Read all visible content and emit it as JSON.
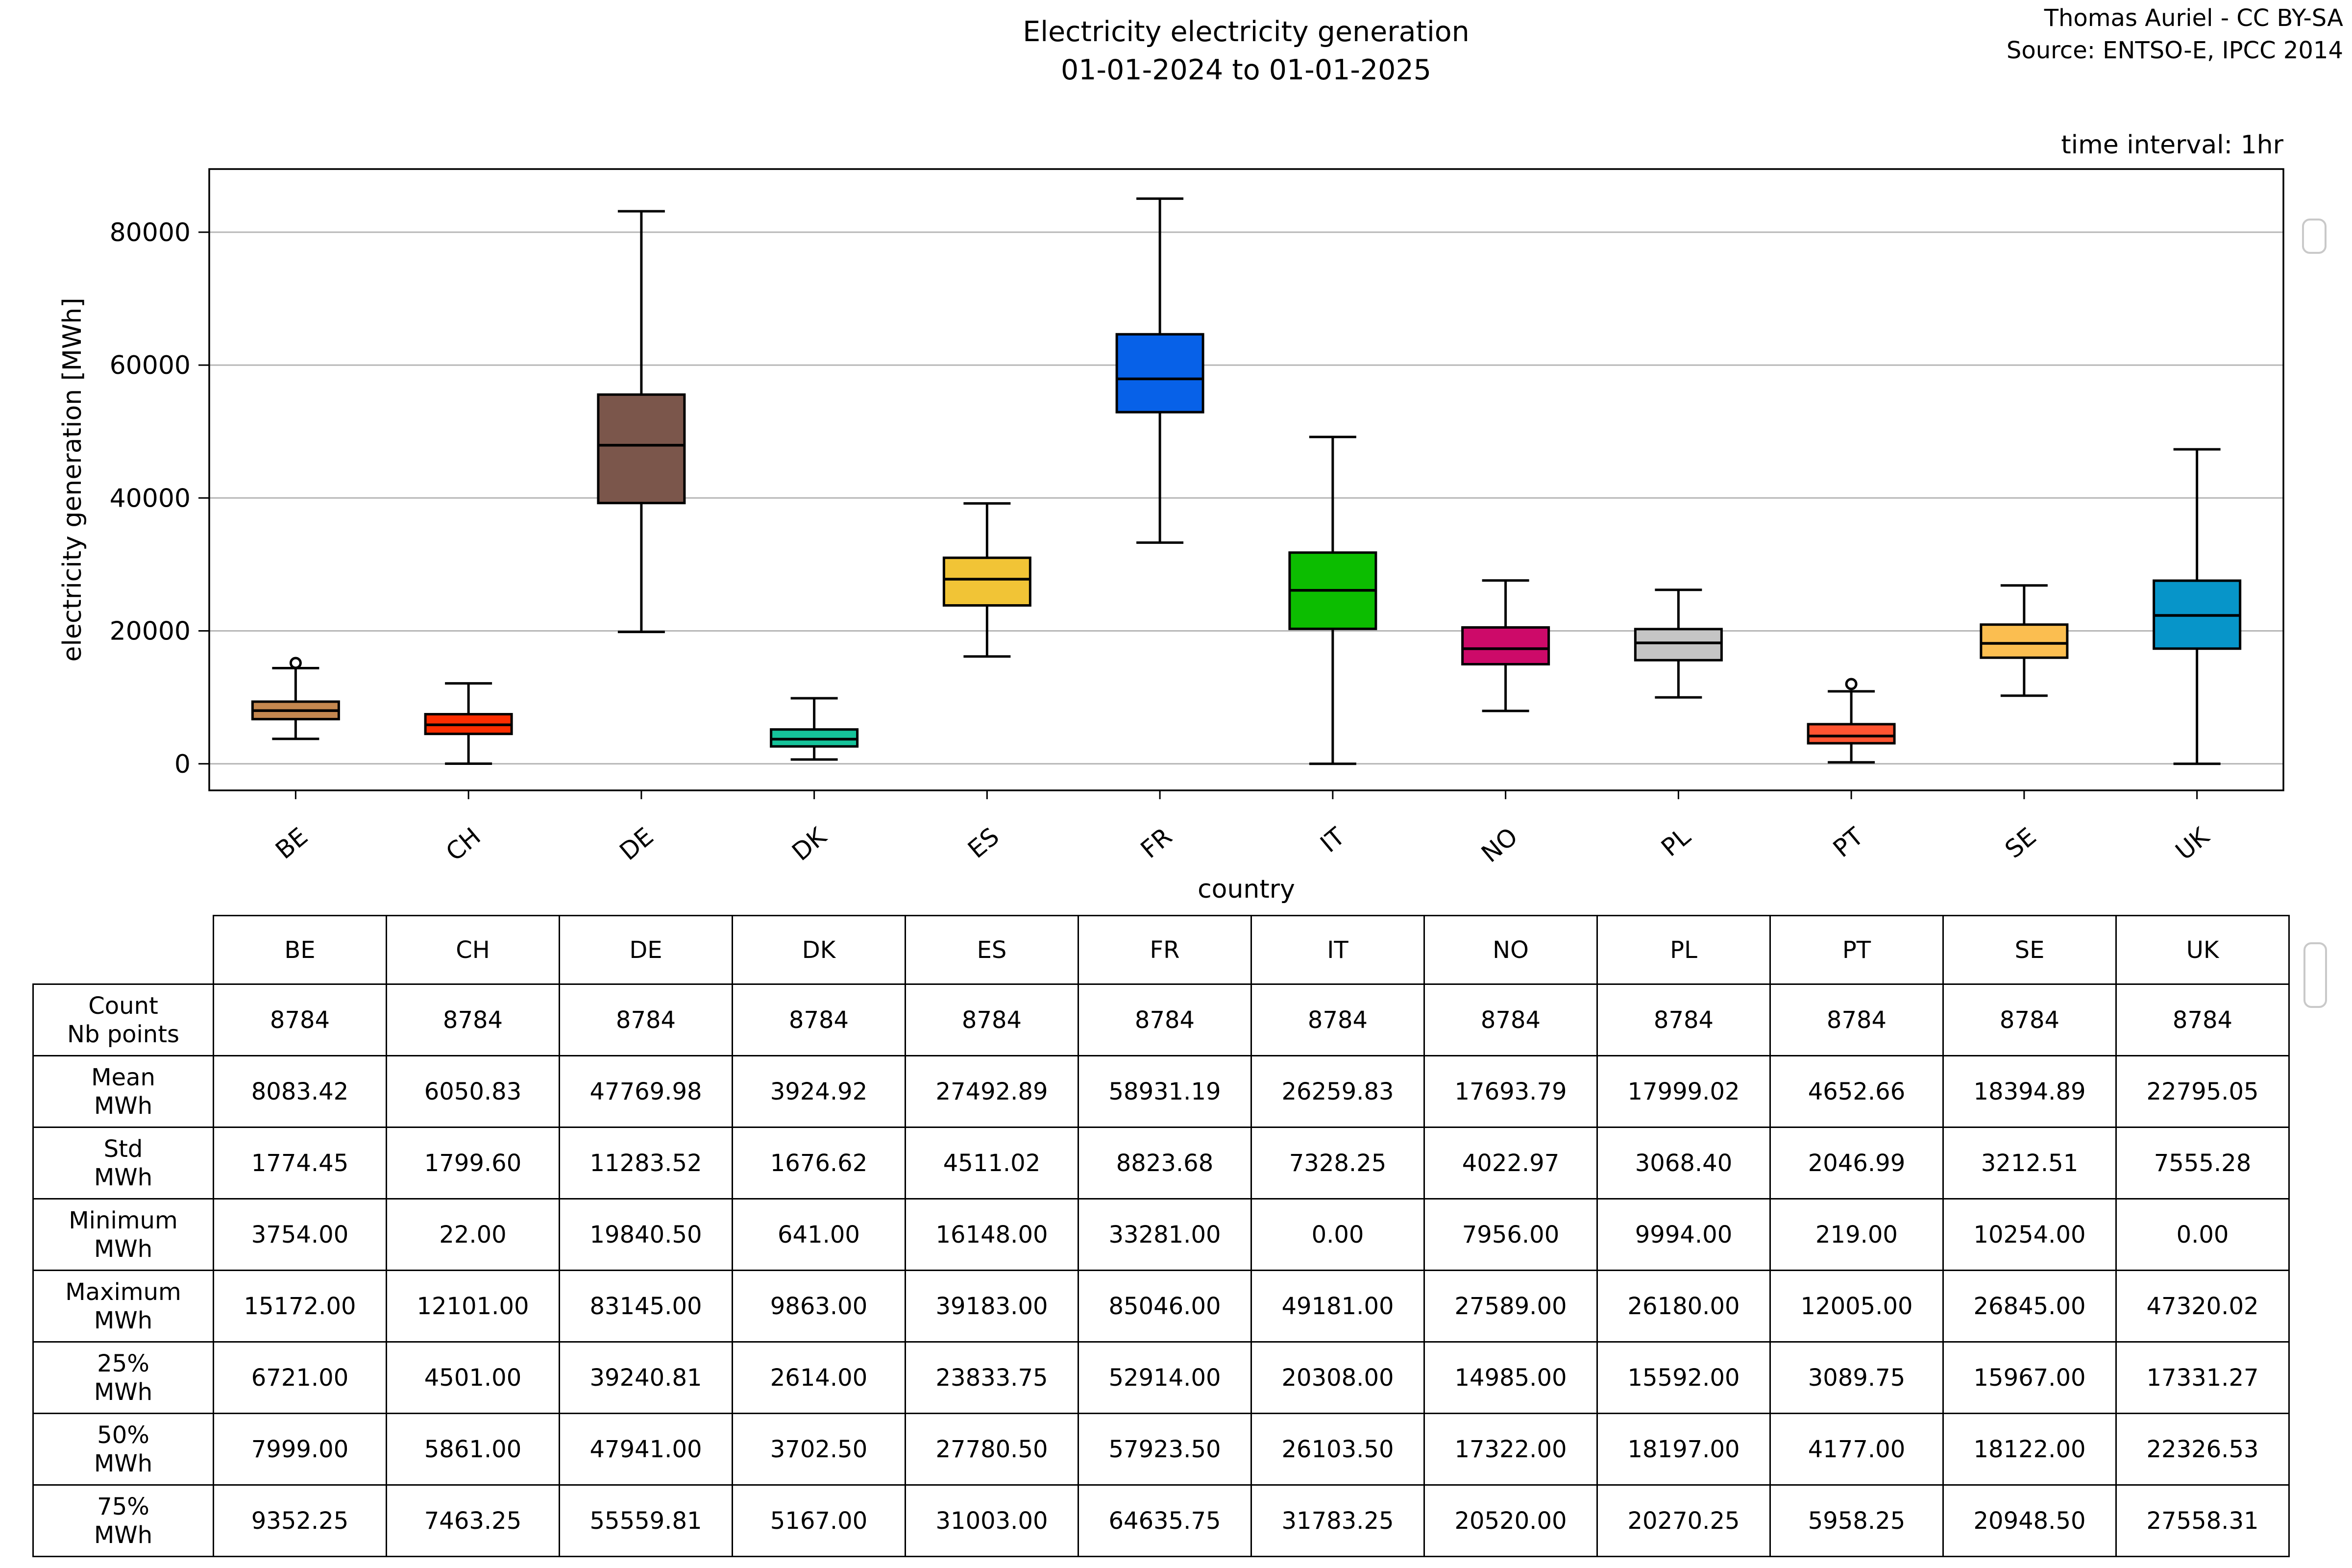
{
  "header": {
    "title_line1": "Electricity electricity generation",
    "title_line2": "01-01-2024 to 01-01-2025",
    "credit_line1": "Thomas Auriel - CC BY-SA",
    "credit_line2": "Source: ENTSO-E, IPCC 2014",
    "time_interval": "time interval: 1hr"
  },
  "chart_data": {
    "type": "boxplot",
    "title": "Electricity electricity generation 01-01-2024 to 01-01-2025",
    "xlabel": "country",
    "ylabel": "electricity generation [MWh]",
    "ylim": [
      -4000,
      89500
    ],
    "yticks": [
      0,
      20000,
      40000,
      60000,
      80000
    ],
    "grid": true,
    "legend": "none",
    "categories": [
      "BE",
      "CH",
      "DE",
      "DK",
      "ES",
      "FR",
      "IT",
      "NO",
      "PL",
      "PT",
      "SE",
      "UK"
    ],
    "series": [
      {
        "name": "BE",
        "color": "#C4874F",
        "whisker_low": 3754,
        "q1": 6721,
        "median": 7999,
        "q3": 9352.25,
        "whisker_high": 14400,
        "outliers": [
          15172
        ]
      },
      {
        "name": "CH",
        "color": "#FD2D00",
        "whisker_low": 22,
        "q1": 4501,
        "median": 5861,
        "q3": 7463.25,
        "whisker_high": 12101,
        "outliers": []
      },
      {
        "name": "DE",
        "color": "#7B564B",
        "whisker_low": 19840.5,
        "q1": 39240.81,
        "median": 47941,
        "q3": 55559.81,
        "whisker_high": 83145,
        "outliers": []
      },
      {
        "name": "DK",
        "color": "#15C39A",
        "whisker_low": 641,
        "q1": 2614,
        "median": 3702.5,
        "q3": 5167,
        "whisker_high": 9863,
        "outliers": []
      },
      {
        "name": "ES",
        "color": "#F1C436",
        "whisker_low": 16148,
        "q1": 23833.75,
        "median": 27780.5,
        "q3": 31003,
        "whisker_high": 39183,
        "outliers": []
      },
      {
        "name": "FR",
        "color": "#0761E8",
        "whisker_low": 33281,
        "q1": 52914,
        "median": 57923.5,
        "q3": 64635.75,
        "whisker_high": 85046,
        "outliers": []
      },
      {
        "name": "IT",
        "color": "#0CBD00",
        "whisker_low": 0,
        "q1": 20308,
        "median": 26103.5,
        "q3": 31783.25,
        "whisker_high": 49181,
        "outliers": []
      },
      {
        "name": "NO",
        "color": "#CD0A69",
        "whisker_low": 7956,
        "q1": 14985,
        "median": 17322,
        "q3": 20520,
        "whisker_high": 27589,
        "outliers": []
      },
      {
        "name": "PL",
        "color": "#C5C5C5",
        "whisker_low": 9994,
        "q1": 15592,
        "median": 18197,
        "q3": 20270.25,
        "whisker_high": 26180,
        "outliers": []
      },
      {
        "name": "PT",
        "color": "#FF5431",
        "whisker_low": 219,
        "q1": 3089.75,
        "median": 4177,
        "q3": 5958.25,
        "whisker_high": 10900,
        "outliers": [
          12005
        ]
      },
      {
        "name": "SE",
        "color": "#FBBE50",
        "whisker_low": 10254,
        "q1": 15967,
        "median": 18122,
        "q3": 20948.5,
        "whisker_high": 26845,
        "outliers": []
      },
      {
        "name": "UK",
        "color": "#0795C9",
        "whisker_low": 0,
        "q1": 17331.27,
        "median": 22326.53,
        "q3": 27558.31,
        "whisker_high": 47320.02,
        "outliers": []
      }
    ]
  },
  "table": {
    "columns": [
      "BE",
      "CH",
      "DE",
      "DK",
      "ES",
      "FR",
      "IT",
      "NO",
      "PL",
      "PT",
      "SE",
      "UK"
    ],
    "rows": [
      {
        "label": "Count",
        "unit": "Nb points",
        "values": [
          "8784",
          "8784",
          "8784",
          "8784",
          "8784",
          "8784",
          "8784",
          "8784",
          "8784",
          "8784",
          "8784",
          "8784"
        ]
      },
      {
        "label": "Mean",
        "unit": "MWh",
        "values": [
          "8083.42",
          "6050.83",
          "47769.98",
          "3924.92",
          "27492.89",
          "58931.19",
          "26259.83",
          "17693.79",
          "17999.02",
          "4652.66",
          "18394.89",
          "22795.05"
        ]
      },
      {
        "label": "Std",
        "unit": "MWh",
        "values": [
          "1774.45",
          "1799.60",
          "11283.52",
          "1676.62",
          "4511.02",
          "8823.68",
          "7328.25",
          "4022.97",
          "3068.40",
          "2046.99",
          "3212.51",
          "7555.28"
        ]
      },
      {
        "label": "Minimum",
        "unit": "MWh",
        "values": [
          "3754.00",
          "22.00",
          "19840.50",
          "641.00",
          "16148.00",
          "33281.00",
          "0.00",
          "7956.00",
          "9994.00",
          "219.00",
          "10254.00",
          "0.00"
        ]
      },
      {
        "label": "Maximum",
        "unit": "MWh",
        "values": [
          "15172.00",
          "12101.00",
          "83145.00",
          "9863.00",
          "39183.00",
          "85046.00",
          "49181.00",
          "27589.00",
          "26180.00",
          "12005.00",
          "26845.00",
          "47320.02"
        ]
      },
      {
        "label": "25%",
        "unit": "MWh",
        "values": [
          "6721.00",
          "4501.00",
          "39240.81",
          "2614.00",
          "23833.75",
          "52914.00",
          "20308.00",
          "14985.00",
          "15592.00",
          "3089.75",
          "15967.00",
          "17331.27"
        ]
      },
      {
        "label": "50%",
        "unit": "MWh",
        "values": [
          "7999.00",
          "5861.00",
          "47941.00",
          "3702.50",
          "27780.50",
          "57923.50",
          "26103.50",
          "17322.00",
          "18197.00",
          "4177.00",
          "18122.00",
          "22326.53"
        ]
      },
      {
        "label": "75%",
        "unit": "MWh",
        "values": [
          "9352.25",
          "7463.25",
          "55559.81",
          "5167.00",
          "31003.00",
          "64635.75",
          "31783.25",
          "20520.00",
          "20270.25",
          "5958.25",
          "20948.50",
          "27558.31"
        ]
      }
    ]
  }
}
